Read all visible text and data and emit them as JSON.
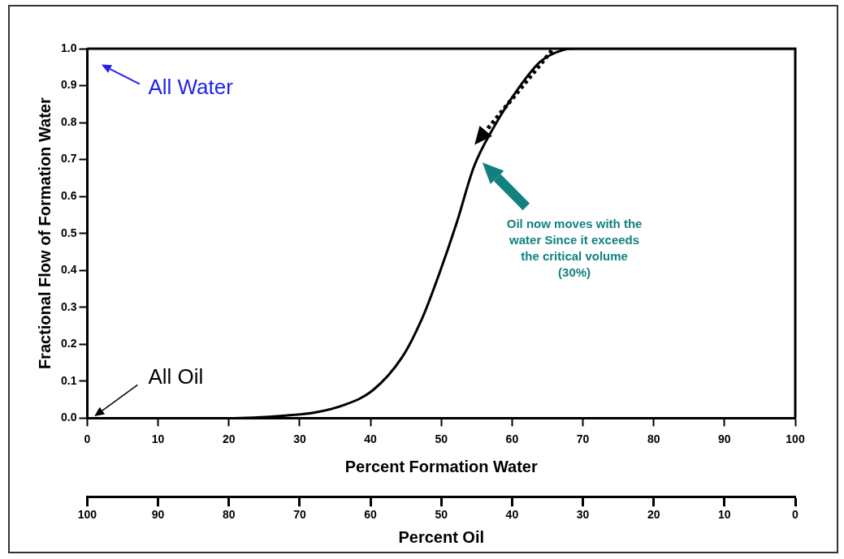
{
  "chart_data": {
    "type": "line",
    "xlabel": "Percent Formation Water",
    "ylabel": "Fractional Flow of Formation Water",
    "x2label": "Percent Oil",
    "xlim": [
      0,
      100
    ],
    "xticks": [
      0,
      10,
      20,
      30,
      40,
      50,
      60,
      70,
      80,
      90,
      100
    ],
    "x2lim": [
      100,
      0
    ],
    "x2ticks": [
      100,
      90,
      80,
      70,
      60,
      50,
      40,
      30,
      20,
      10,
      0
    ],
    "ylim": [
      0,
      1
    ],
    "yticks": [
      {
        "value": 0,
        "label": "0.0"
      },
      0.1,
      0.2,
      0.3,
      0.4,
      0.5,
      0.6,
      0.7,
      0.8,
      0.9,
      {
        "value": 1,
        "label": "1.0"
      }
    ],
    "grid": false,
    "legend": false,
    "marker": "none",
    "line_style": "solid",
    "series": [
      {
        "color": "#000000",
        "x": [
          0,
          10,
          20,
          28,
          32.1,
          36.2,
          40.3,
          44.4,
          47.3,
          49.7,
          52.2,
          54.6,
          57.5,
          60.8,
          64,
          67.3,
          68.9,
          80,
          90,
          100
        ],
        "values": [
          0,
          0,
          0,
          0.007,
          0.015,
          0.035,
          0.075,
          0.163,
          0.27,
          0.39,
          0.53,
          0.68,
          0.79,
          0.89,
          0.965,
          0.997,
          1,
          1,
          1,
          1
        ]
      }
    ],
    "annotations": [
      "All Water",
      "All Oil",
      "Oil now moves with the water Since it exceeds the critical volume (30%)"
    ]
  }
}
